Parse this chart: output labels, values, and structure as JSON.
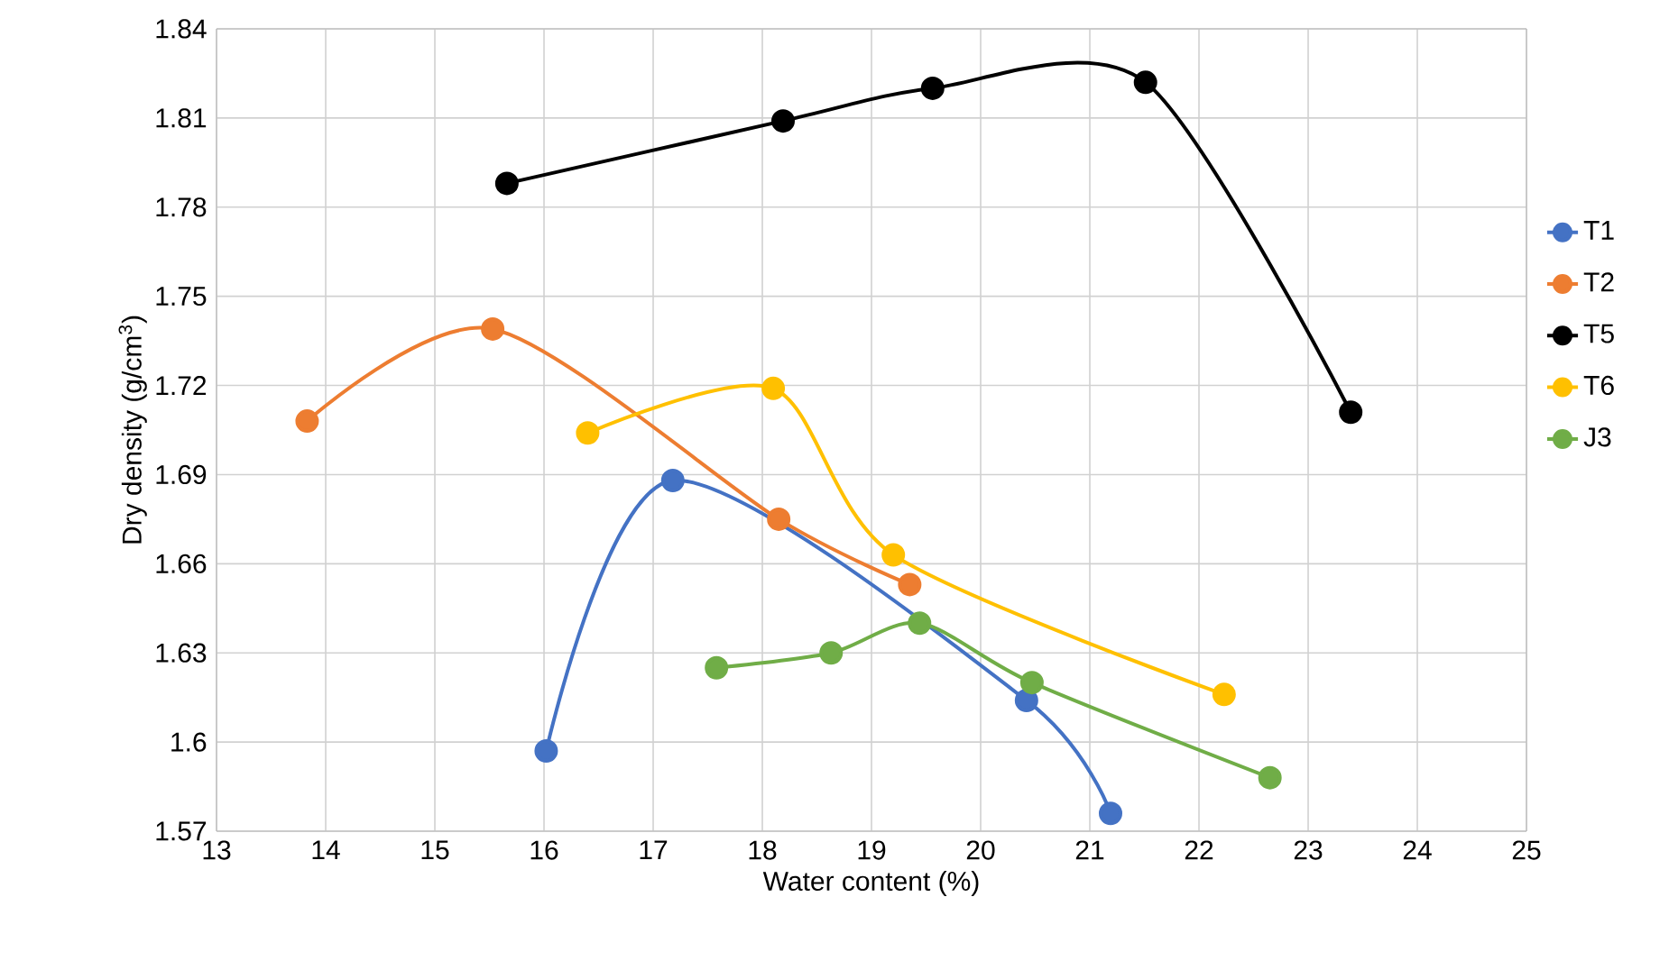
{
  "chart_data": {
    "type": "line",
    "xlabel": "Water content (%)",
    "ylabel": "Dry density (g/cm$^{3}$)",
    "xlim": [
      13,
      25
    ],
    "xticks": [
      13,
      14,
      15,
      16,
      17,
      18,
      19,
      20,
      21,
      22,
      23,
      24,
      25
    ],
    "ylim": [
      1.57,
      1.84
    ],
    "yticks": [
      1.57,
      1.6,
      1.63,
      1.66,
      1.69,
      1.72,
      1.75,
      1.78,
      1.81,
      1.84
    ],
    "grid": true,
    "legend": "right",
    "marker": "circle",
    "line_style": "solid",
    "series": [
      {
        "name": "T1",
        "color": "#4472c4",
        "x": [
          16.02,
          17.18,
          20.42,
          21.19
        ],
        "values": [
          1.597,
          1.688,
          1.614,
          1.576
        ]
      },
      {
        "name": "T2",
        "color": "#ed7d31",
        "x": [
          13.83,
          15.53,
          18.15,
          19.35
        ],
        "values": [
          1.708,
          1.739,
          1.675,
          1.653
        ]
      },
      {
        "name": "T5",
        "color": "#000000",
        "x": [
          15.66,
          18.19,
          19.56,
          21.51,
          23.39
        ],
        "values": [
          1.788,
          1.809,
          1.82,
          1.822,
          1.711
        ]
      },
      {
        "name": "T6",
        "color": "#ffc000",
        "x": [
          16.4,
          18.1,
          19.2,
          22.23
        ],
        "values": [
          1.704,
          1.719,
          1.663,
          1.616
        ]
      },
      {
        "name": "J3",
        "color": "#70ad47",
        "x": [
          17.58,
          18.63,
          19.44,
          20.47,
          22.65
        ],
        "values": [
          1.625,
          1.63,
          1.64,
          1.62,
          1.588
        ]
      }
    ]
  }
}
